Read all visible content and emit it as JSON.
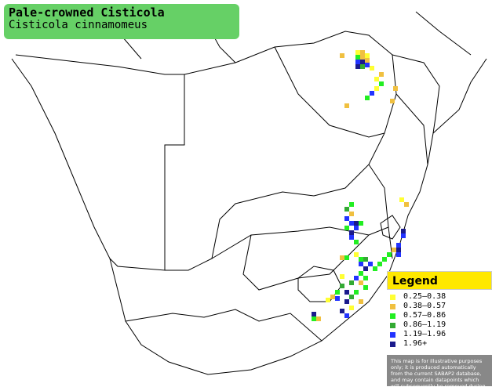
{
  "header": {
    "title": "Pale-crowned Cisticola",
    "subtitle": "Cisticola cinnamomeus"
  },
  "legend": {
    "title": "Legend",
    "items": [
      {
        "label": "0.25–0.38",
        "color": "#ffff33"
      },
      {
        "label": "0.38–0.57",
        "color": "#f0c040"
      },
      {
        "label": "0.57–0.86",
        "color": "#22ee22"
      },
      {
        "label": "0.86–1.19",
        "color": "#33aa33"
      },
      {
        "label": "1.19–1.96",
        "color": "#2233ff"
      },
      {
        "label": "1.96+",
        "color": "#1a1a8c"
      }
    ],
    "note": "This map is for illustrative purposes only; it is produced automatically from the current SABAP2 database, and may contain datapoints which will subsequently be removed during checking operations."
  }
}
